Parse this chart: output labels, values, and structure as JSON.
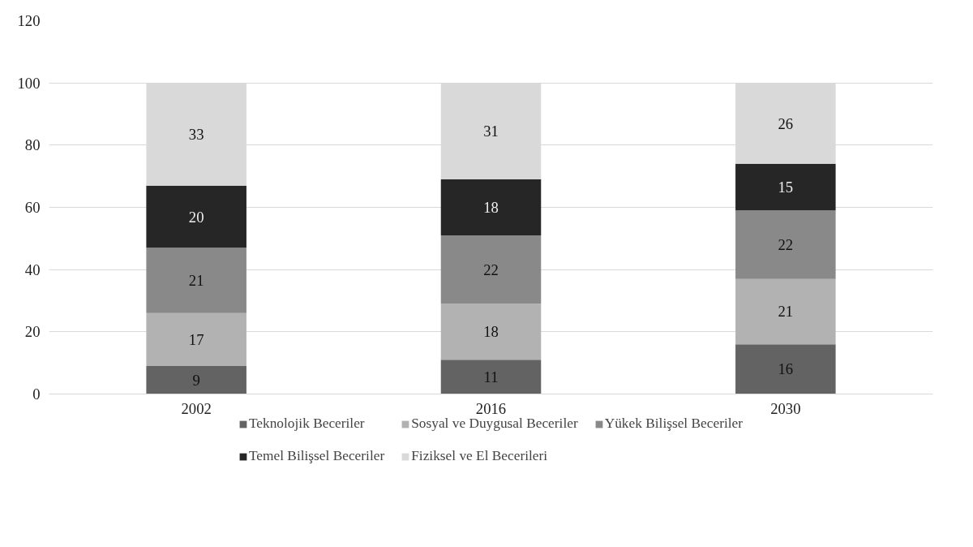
{
  "chart_data": {
    "type": "bar",
    "stacked": true,
    "categories": [
      "2002",
      "2016",
      "2030"
    ],
    "series": [
      {
        "name": "Teknolojik Beceriler",
        "color": "#636363",
        "values": [
          9,
          11,
          16
        ]
      },
      {
        "name": "Sosyal ve Duygusal Beceriler",
        "color": "#b2b2b2",
        "values": [
          17,
          18,
          21
        ]
      },
      {
        "name": "Yükek Bilişsel Beceriler",
        "color": "#898989",
        "values": [
          21,
          22,
          22
        ]
      },
      {
        "name": "Temel Bilişsel Beceriler",
        "color": "#262626",
        "values": [
          20,
          18,
          15
        ]
      },
      {
        "name": "Fiziksel ve El Becerileri",
        "color": "#d9d9d9",
        "values": [
          33,
          31,
          26
        ]
      }
    ],
    "ylim": [
      0,
      120
    ],
    "yticks": [
      0,
      20,
      40,
      60,
      80,
      100,
      120
    ],
    "grid": "y",
    "legend": "bottom",
    "data_labels": true
  }
}
